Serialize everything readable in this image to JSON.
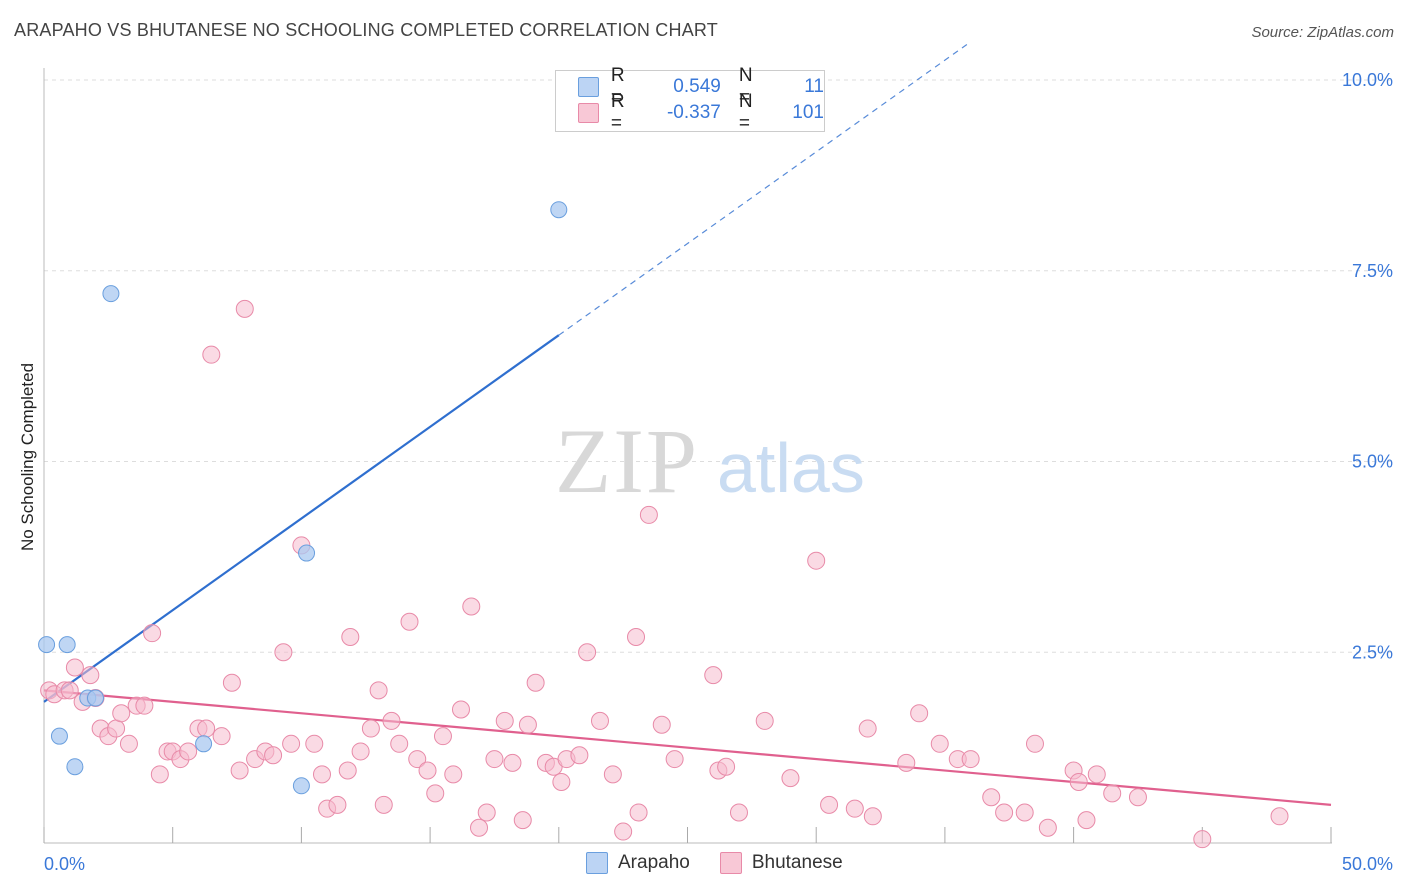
{
  "header": {
    "title": "ARAPAHO VS BHUTANESE NO SCHOOLING COMPLETED CORRELATION CHART",
    "source": "Source: ZipAtlas.com"
  },
  "watermark": {
    "part1": "ZIP",
    "part2": "atlas"
  },
  "legend": {
    "rows": [
      {
        "r_label": "R =",
        "r_value": "0.549",
        "n_label": "N =",
        "n_value": "11"
      },
      {
        "r_label": "R =",
        "r_value": "-0.337",
        "n_label": "N =",
        "n_value": "101"
      }
    ]
  },
  "bottom_legend": {
    "items": [
      "Arapaho",
      "Bhutanese"
    ]
  },
  "colors": {
    "arapaho_fill": "#aac8f0",
    "arapaho_stroke": "#6a9fde",
    "arapaho_line": "#2f6fcf",
    "bhutanese_fill": "#f6bccd",
    "bhutanese_stroke": "#e88aa8",
    "bhutanese_line": "#e0608e",
    "tick_label": "#3a78d8",
    "grid": "#dddddd"
  },
  "chart_data": {
    "type": "scatter",
    "title": "ARAPAHO VS BHUTANESE NO SCHOOLING COMPLETED CORRELATION CHART",
    "xlabel": "",
    "ylabel": "No Schooling Completed",
    "xlim": [
      0,
      50
    ],
    "ylim": [
      0,
      10.5
    ],
    "x_tick_labels": [
      {
        "value": 0,
        "label": "0.0%"
      },
      {
        "value": 50,
        "label": "50.0%"
      }
    ],
    "y_tick_labels": [
      {
        "value": 2.5,
        "label": "2.5%"
      },
      {
        "value": 5.0,
        "label": "5.0%"
      },
      {
        "value": 7.5,
        "label": "7.5%"
      },
      {
        "value": 10.0,
        "label": "10.0%"
      }
    ],
    "series": [
      {
        "name": "Arapaho",
        "points": [
          [
            0.1,
            2.6
          ],
          [
            0.9,
            2.6
          ],
          [
            1.7,
            1.9
          ],
          [
            2.0,
            1.9
          ],
          [
            0.6,
            1.4
          ],
          [
            1.2,
            1.0
          ],
          [
            2.6,
            7.2
          ],
          [
            6.2,
            1.3
          ],
          [
            10.2,
            3.8
          ],
          [
            10.0,
            0.75
          ],
          [
            20.0,
            8.3
          ]
        ],
        "trend": {
          "x0": 0,
          "y0": 1.85,
          "x_solid_end": 20,
          "x1": 36,
          "y1": 10.5
        }
      },
      {
        "name": "Bhutanese",
        "points": [
          [
            0.2,
            2.0
          ],
          [
            0.4,
            1.95
          ],
          [
            0.8,
            2.0
          ],
          [
            1.0,
            2.0
          ],
          [
            1.2,
            2.3
          ],
          [
            1.5,
            1.85
          ],
          [
            1.8,
            2.2
          ],
          [
            2.0,
            1.9
          ],
          [
            2.2,
            1.5
          ],
          [
            2.5,
            1.4
          ],
          [
            2.8,
            1.5
          ],
          [
            3.0,
            1.7
          ],
          [
            3.3,
            1.3
          ],
          [
            3.6,
            1.8
          ],
          [
            3.9,
            1.8
          ],
          [
            4.2,
            2.75
          ],
          [
            4.5,
            0.9
          ],
          [
            4.8,
            1.2
          ],
          [
            5.0,
            1.2
          ],
          [
            5.3,
            1.1
          ],
          [
            5.6,
            1.2
          ],
          [
            6.0,
            1.5
          ],
          [
            6.3,
            1.5
          ],
          [
            6.5,
            6.4
          ],
          [
            6.9,
            1.4
          ],
          [
            7.3,
            2.1
          ],
          [
            7.6,
            0.95
          ],
          [
            7.8,
            7.0
          ],
          [
            8.2,
            1.1
          ],
          [
            8.6,
            1.2
          ],
          [
            8.9,
            1.15
          ],
          [
            9.3,
            2.5
          ],
          [
            9.6,
            1.3
          ],
          [
            10.0,
            3.9
          ],
          [
            10.5,
            1.3
          ],
          [
            10.8,
            0.9
          ],
          [
            11.0,
            0.45
          ],
          [
            11.4,
            0.5
          ],
          [
            11.8,
            0.95
          ],
          [
            11.9,
            2.7
          ],
          [
            12.3,
            1.2
          ],
          [
            12.7,
            1.5
          ],
          [
            13.0,
            2.0
          ],
          [
            13.2,
            0.5
          ],
          [
            13.5,
            1.6
          ],
          [
            13.8,
            1.3
          ],
          [
            14.2,
            2.9
          ],
          [
            14.5,
            1.1
          ],
          [
            14.9,
            0.95
          ],
          [
            15.2,
            0.65
          ],
          [
            15.5,
            1.4
          ],
          [
            15.9,
            0.9
          ],
          [
            16.2,
            1.75
          ],
          [
            16.6,
            3.1
          ],
          [
            16.9,
            0.2
          ],
          [
            17.2,
            0.4
          ],
          [
            17.5,
            1.1
          ],
          [
            17.9,
            1.6
          ],
          [
            18.2,
            1.05
          ],
          [
            18.6,
            0.3
          ],
          [
            18.8,
            1.55
          ],
          [
            19.1,
            2.1
          ],
          [
            19.5,
            1.05
          ],
          [
            19.8,
            1.0
          ],
          [
            20.1,
            0.8
          ],
          [
            20.3,
            1.1
          ],
          [
            20.8,
            1.15
          ],
          [
            21.1,
            2.5
          ],
          [
            21.6,
            1.6
          ],
          [
            22.1,
            0.9
          ],
          [
            22.5,
            0.15
          ],
          [
            23.0,
            2.7
          ],
          [
            23.1,
            0.4
          ],
          [
            23.5,
            4.3
          ],
          [
            24.0,
            1.55
          ],
          [
            24.5,
            1.1
          ],
          [
            26.0,
            2.2
          ],
          [
            26.2,
            0.95
          ],
          [
            26.5,
            1.0
          ],
          [
            27.0,
            0.4
          ],
          [
            28.0,
            1.6
          ],
          [
            29.0,
            0.85
          ],
          [
            30.0,
            3.7
          ],
          [
            30.5,
            0.5
          ],
          [
            31.5,
            0.45
          ],
          [
            32.0,
            1.5
          ],
          [
            32.2,
            0.35
          ],
          [
            33.5,
            1.05
          ],
          [
            34.0,
            1.7
          ],
          [
            34.8,
            1.3
          ],
          [
            35.5,
            1.1
          ],
          [
            36.0,
            1.1
          ],
          [
            36.8,
            0.6
          ],
          [
            37.3,
            0.4
          ],
          [
            38.1,
            0.4
          ],
          [
            38.5,
            1.3
          ],
          [
            39.0,
            0.2
          ],
          [
            40.0,
            0.95
          ],
          [
            40.2,
            0.8
          ],
          [
            40.5,
            0.3
          ],
          [
            40.9,
            0.9
          ],
          [
            41.5,
            0.65
          ],
          [
            42.5,
            0.6
          ],
          [
            45.0,
            0.05
          ],
          [
            48.0,
            0.35
          ]
        ],
        "trend": {
          "x0": 0,
          "y0": 2.0,
          "x1": 50,
          "y1": 0.5
        }
      }
    ]
  }
}
